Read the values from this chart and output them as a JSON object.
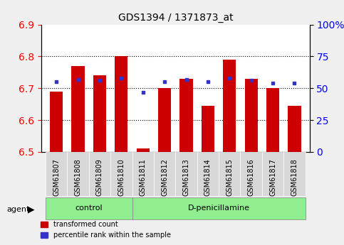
{
  "title": "GDS1394 / 1371873_at",
  "samples": [
    "GSM61807",
    "GSM61808",
    "GSM61809",
    "GSM61810",
    "GSM61811",
    "GSM61812",
    "GSM61813",
    "GSM61814",
    "GSM61815",
    "GSM61816",
    "GSM61817",
    "GSM61818"
  ],
  "red_values": [
    6.69,
    6.77,
    6.74,
    6.8,
    6.51,
    6.7,
    6.73,
    6.645,
    6.79,
    6.73,
    6.7,
    6.645
  ],
  "blue_values": [
    55,
    57,
    56,
    58,
    47,
    55,
    57,
    55,
    58,
    56,
    54,
    54
  ],
  "ylim_left": [
    6.5,
    6.9
  ],
  "ylim_right": [
    0,
    100
  ],
  "yticks_left": [
    6.5,
    6.6,
    6.7,
    6.8,
    6.9
  ],
  "yticks_right": [
    0,
    25,
    50,
    75,
    100
  ],
  "ytick_labels_right": [
    "0",
    "25",
    "50",
    "75",
    "100%"
  ],
  "grid_lines": [
    6.6,
    6.7,
    6.8
  ],
  "bar_bottom": 6.5,
  "bar_color": "#cc0000",
  "blue_color": "#3333cc",
  "control_group": [
    "GSM61807",
    "GSM61808",
    "GSM61809",
    "GSM61810"
  ],
  "treatment_group": [
    "GSM61811",
    "GSM61812",
    "GSM61813",
    "GSM61814",
    "GSM61815",
    "GSM61816",
    "GSM61817",
    "GSM61818"
  ],
  "control_label": "control",
  "treatment_label": "D-penicillamine",
  "agent_label": "agent",
  "legend_red": "transformed count",
  "legend_blue": "percentile rank within the sample",
  "background_color": "#f0f0f0",
  "plot_bg": "#ffffff",
  "bar_width": 0.6,
  "blue_marker_size": 6
}
